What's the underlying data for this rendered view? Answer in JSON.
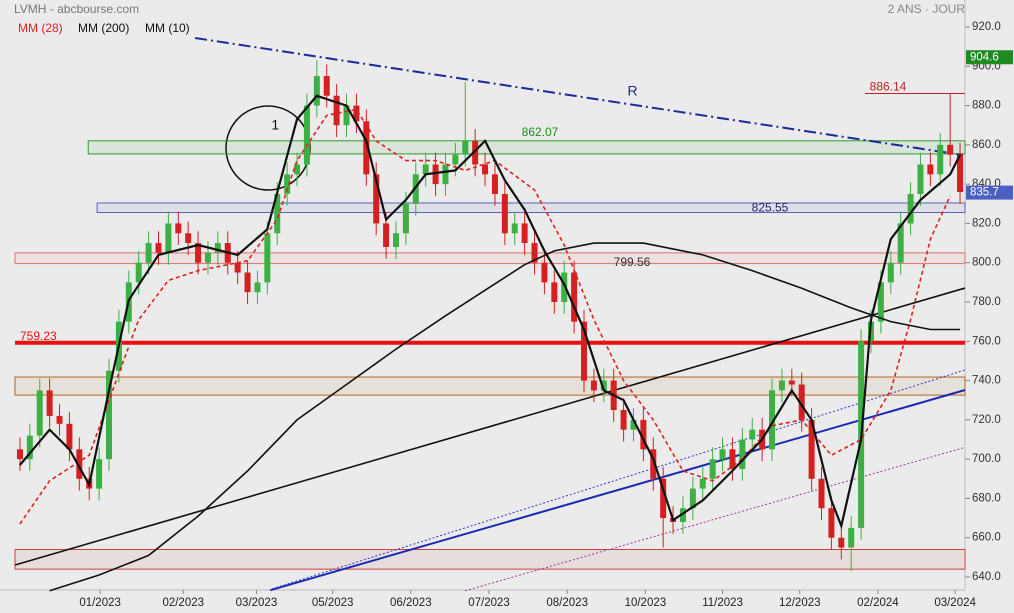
{
  "chart_data": {
    "type": "candlestick",
    "title": "LVMH - abcbourse.com",
    "subtitle": "2 ANS · JOUR",
    "up_color": "#3cb043",
    "down_color": "#d42020",
    "open": [
      705,
      700,
      712,
      735,
      722,
      718,
      705,
      690,
      685,
      700,
      745,
      770,
      790,
      800,
      810,
      805,
      820,
      815,
      810,
      800,
      805,
      810,
      800,
      795,
      785,
      790,
      815,
      835,
      845,
      850,
      880,
      895,
      885,
      870,
      880,
      872,
      845,
      820,
      808,
      815,
      830,
      845,
      850,
      840,
      850,
      855,
      862,
      850,
      845,
      835,
      815,
      820,
      810,
      800,
      790,
      780,
      795,
      770,
      740,
      735,
      740,
      725,
      715,
      720,
      705,
      690,
      670,
      668,
      675,
      685,
      690,
      700,
      705,
      695,
      710,
      715,
      705,
      735,
      740,
      738,
      720,
      690,
      675,
      660,
      655,
      665,
      760,
      770,
      790,
      800,
      820,
      835,
      850,
      845,
      860,
      855
    ],
    "high": [
      711,
      718,
      741,
      741,
      728,
      724,
      711,
      696,
      706,
      751,
      776,
      796,
      806,
      816,
      816,
      826,
      826,
      821,
      816,
      811,
      816,
      816,
      806,
      801,
      796,
      821,
      841,
      851,
      856,
      886,
      903,
      901,
      891,
      886,
      886,
      878,
      851,
      826,
      821,
      836,
      851,
      856,
      856,
      856,
      861,
      892,
      868,
      856,
      851,
      841,
      826,
      826,
      816,
      806,
      796,
      801,
      801,
      776,
      746,
      746,
      746,
      731,
      726,
      726,
      711,
      696,
      676,
      681,
      691,
      696,
      706,
      711,
      711,
      716,
      721,
      721,
      741,
      746,
      746,
      744,
      726,
      696,
      681,
      666,
      671,
      766,
      776,
      796,
      806,
      826,
      841,
      856,
      856,
      866,
      886,
      861
    ],
    "low": [
      694,
      694,
      706,
      716,
      712,
      699,
      684,
      679,
      679,
      694,
      739,
      764,
      784,
      794,
      799,
      799,
      809,
      804,
      794,
      794,
      799,
      794,
      789,
      779,
      779,
      784,
      809,
      829,
      839,
      844,
      874,
      879,
      864,
      864,
      866,
      839,
      814,
      802,
      802,
      809,
      824,
      839,
      834,
      834,
      844,
      849,
      844,
      839,
      829,
      809,
      809,
      804,
      794,
      784,
      774,
      774,
      764,
      734,
      729,
      729,
      719,
      709,
      709,
      699,
      684,
      655,
      662,
      662,
      669,
      679,
      684,
      694,
      689,
      689,
      704,
      699,
      699,
      729,
      732,
      714,
      684,
      669,
      654,
      649,
      643,
      659,
      754,
      764,
      784,
      794,
      814,
      829,
      839,
      839,
      849,
      830
    ],
    "close": [
      700,
      712,
      735,
      722,
      718,
      705,
      690,
      685,
      700,
      745,
      770,
      790,
      800,
      810,
      805,
      820,
      815,
      810,
      800,
      805,
      810,
      800,
      795,
      785,
      790,
      815,
      835,
      845,
      850,
      880,
      895,
      885,
      870,
      880,
      872,
      845,
      820,
      808,
      815,
      830,
      845,
      850,
      840,
      850,
      855,
      862,
      850,
      845,
      835,
      815,
      820,
      810,
      800,
      790,
      780,
      795,
      770,
      740,
      735,
      740,
      725,
      715,
      720,
      705,
      690,
      670,
      668,
      675,
      685,
      690,
      700,
      705,
      695,
      710,
      715,
      705,
      735,
      740,
      738,
      720,
      690,
      675,
      660,
      655,
      665,
      760,
      770,
      790,
      800,
      820,
      835,
      850,
      845,
      860,
      855,
      836
    ],
    "series": [
      {
        "name": "MM (28)",
        "color": "#e02020",
        "dash": "4,3",
        "width": 1.6,
        "x": [
          0,
          3,
          7,
          9,
          12,
          15,
          18,
          23,
          26,
          28,
          31,
          34,
          36,
          39,
          42,
          45,
          48,
          52,
          55,
          58,
          61,
          64,
          67,
          70,
          73,
          76,
          79,
          82,
          85,
          88,
          90,
          92,
          94
        ],
        "values": [
          667,
          689,
          702,
          730,
          771,
          791,
          796,
          801,
          822,
          852,
          875,
          878,
          862,
          852,
          852,
          847,
          852,
          837,
          809,
          771,
          740,
          720,
          694,
          689,
          700,
          717,
          720,
          702,
          710,
          735,
          771,
          812,
          834
        ]
      },
      {
        "name": "MM (200)",
        "color": "#111111",
        "dash": "",
        "width": 1.6,
        "x": [
          3,
          8,
          13,
          18,
          23,
          28,
          33,
          38,
          43,
          47,
          51,
          54,
          58,
          63,
          69,
          74,
          79,
          84,
          88,
          92,
          95
        ],
        "values": [
          633,
          641,
          651,
          671,
          694,
          720,
          738,
          756,
          773,
          786,
          799,
          806,
          810,
          810,
          804,
          796,
          787,
          777,
          770,
          766,
          766
        ]
      },
      {
        "name": "MM (10)",
        "color": "#111111",
        "dash": "",
        "width": 2.2,
        "x": [
          0,
          3,
          5,
          7,
          9,
          11,
          14,
          18,
          22,
          25,
          28,
          30,
          33,
          35,
          37,
          39,
          41,
          44,
          47,
          49,
          51,
          53,
          55,
          57,
          59,
          61,
          64,
          66,
          69,
          72,
          75,
          78,
          80,
          82,
          83,
          85,
          86,
          88,
          91,
          94,
          95
        ],
        "values": [
          697,
          715,
          705,
          687,
          735,
          781,
          804,
          809,
          804,
          817,
          873,
          885,
          880,
          862,
          822,
          832,
          845,
          847,
          862,
          842,
          827,
          806,
          789,
          766,
          735,
          730,
          700,
          669,
          679,
          694,
          710,
          735,
          720,
          679,
          666,
          710,
          771,
          812,
          832,
          845,
          855
        ]
      }
    ],
    "xlim": [
      -0.5,
      95.5
    ],
    "xticks": [
      {
        "value": 8.1,
        "label": "01/2023"
      },
      {
        "value": 16.5,
        "label": "02/2023"
      },
      {
        "value": 23.9,
        "label": "03/2023"
      },
      {
        "value": 31.6,
        "label": "05/2023"
      },
      {
        "value": 39.5,
        "label": "06/2023"
      },
      {
        "value": 47.4,
        "label": "07/2023"
      },
      {
        "value": 55.3,
        "label": "08/2023"
      },
      {
        "value": 63.2,
        "label": "10/2023"
      },
      {
        "value": 71.0,
        "label": "11/2023"
      },
      {
        "value": 78.8,
        "label": "12/2023"
      },
      {
        "value": 86.7,
        "label": "02/2024"
      },
      {
        "value": 94.5,
        "label": "03/2024"
      }
    ],
    "ylim": [
      640,
      920
    ],
    "yticks": [
      {
        "value": 640,
        "label": "640.0"
      },
      {
        "value": 660,
        "label": "660.0"
      },
      {
        "value": 680,
        "label": "680.0"
      },
      {
        "value": 700,
        "label": "700.0"
      },
      {
        "value": 720,
        "label": "720.0"
      },
      {
        "value": 740,
        "label": "740.0"
      },
      {
        "value": 760,
        "label": "760.0"
      },
      {
        "value": 780,
        "label": "780.0"
      },
      {
        "value": 800,
        "label": "800.0"
      },
      {
        "value": 820,
        "label": "820.0"
      },
      {
        "value": 840,
        "label": "840.0"
      },
      {
        "value": 860,
        "label": "860.0"
      },
      {
        "value": 880,
        "label": "880.0"
      },
      {
        "value": 900,
        "label": "900.0"
      },
      {
        "value": 920,
        "label": "920.0"
      }
    ],
    "zones": [
      {
        "low": 855.4,
        "high": 862.07,
        "x_start": 6.9,
        "color": "#2a9d2a"
      },
      {
        "low": 825.55,
        "high": 830.4,
        "x_start": 7.8,
        "color": "#5560b8"
      },
      {
        "low": 799.56,
        "high": 805,
        "x_start": -0.5,
        "color": "#e07070"
      },
      {
        "low": 732.6,
        "high": 741.8,
        "x_start": -0.5,
        "color": "#b8651a"
      },
      {
        "low": 644,
        "high": 654,
        "x_start": -0.5,
        "color": "#d04040"
      }
    ],
    "levels": [
      {
        "value": 759.23,
        "x_start": -0.5,
        "color": "#e81010",
        "width": 4
      },
      {
        "value": 886.14,
        "x_start": 85.4,
        "color": "#c02020",
        "width": 1
      }
    ],
    "trendlines": [
      {
        "x": [
          17.7,
          95.3
        ],
        "y": [
          914.4,
          854.8
        ],
        "color": "#1a2a9a",
        "dash": "12,4,2,4",
        "width": 2
      },
      {
        "x": [
          -0.5,
          95.5
        ],
        "y": [
          646.1,
          787.1
        ],
        "color": "#111111",
        "dash": "",
        "width": 1.6
      },
      {
        "x": [
          25.3,
          95.5
        ],
        "y": [
          633.3,
          735.2
        ],
        "color": "#1a2ab0",
        "dash": "",
        "width": 2
      },
      {
        "x": [
          25.5,
          95.5
        ],
        "y": [
          634,
          745.4
        ],
        "color": "#2a3ad0",
        "dash": "2,2",
        "width": 1
      },
      {
        "x": [
          45,
          95.5
        ],
        "y": [
          633,
          706
        ],
        "color": "#9a3a9a",
        "dash": "2,2",
        "width": 1
      }
    ],
    "annotations": [
      {
        "text": "R",
        "x": 61.9,
        "y": 887,
        "color": "#1a2a9a"
      },
      {
        "text": "1",
        "x": 25.8,
        "y": 869.6,
        "color": "#111111"
      }
    ],
    "price_tags": [
      {
        "value": 904.6,
        "color": "#1f8a1f"
      },
      {
        "value": 835.7,
        "color": "#4a5fc0"
      }
    ]
  }
}
